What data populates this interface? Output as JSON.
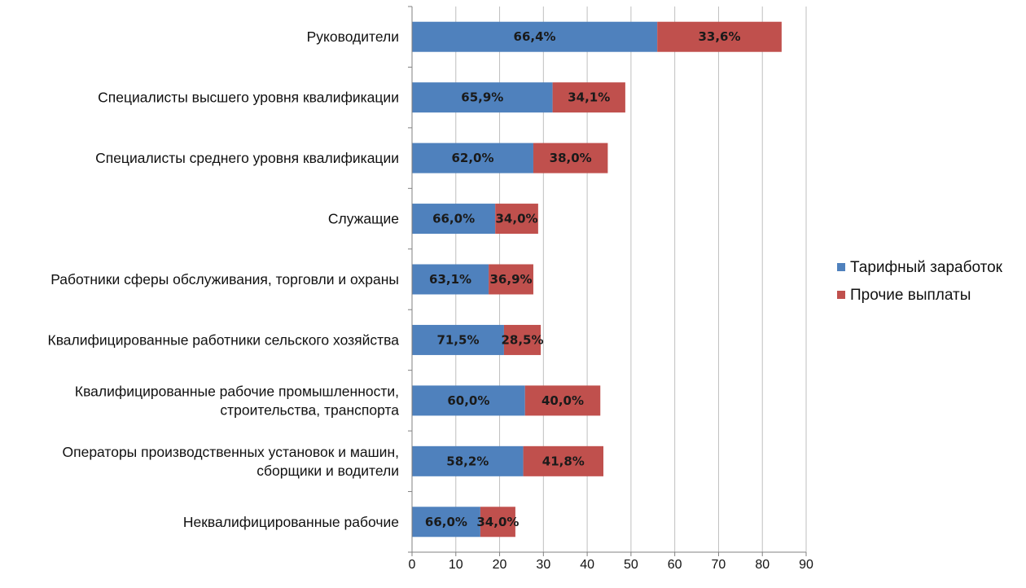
{
  "chart_data": {
    "type": "bar",
    "orientation": "horizontal",
    "stacked": true,
    "categories": [
      [
        "Руководители"
      ],
      [
        "Специалисты высшего уровня квалификации"
      ],
      [
        "Специалисты среднего уровня квалификации"
      ],
      [
        "Служащие"
      ],
      [
        "Работники сферы обслуживания, торговли и охраны"
      ],
      [
        "Квалифицированные работники сельского хозяйства"
      ],
      [
        "Квалифицированные рабочие промышленности,",
        "строительства, транспорта"
      ],
      [
        "Операторы производственных установок и машин,",
        "сборщики и водители"
      ],
      [
        "Неквалифицированные рабочие"
      ]
    ],
    "series": [
      {
        "name": "Тарифный заработок",
        "color": "#4F81BD",
        "values": [
          56.0,
          32.1,
          27.7,
          19.0,
          17.5,
          21.0,
          25.8,
          25.4,
          15.6
        ],
        "labels": [
          "66,4%",
          "65,9%",
          "62,0%",
          "66,0%",
          "63,1%",
          "71,5%",
          "60,0%",
          "58,2%",
          "66,0%"
        ]
      },
      {
        "name": "Прочие выплаты",
        "color": "#C0504D",
        "values": [
          28.4,
          16.6,
          17.0,
          9.8,
          10.2,
          8.4,
          17.2,
          18.3,
          8.0
        ],
        "labels": [
          "33,6%",
          "34,1%",
          "38,0%",
          "34,0%",
          "36,9%",
          "28,5%",
          "40,0%",
          "41,8%",
          "34,0%"
        ]
      }
    ],
    "xlim": [
      0,
      90
    ],
    "xticks": [
      "0",
      "10",
      "20",
      "30",
      "40",
      "50",
      "60",
      "70",
      "80",
      "90"
    ],
    "grid": "vertical",
    "gridline_color": "#BFBFBF",
    "legend_position": "right"
  }
}
